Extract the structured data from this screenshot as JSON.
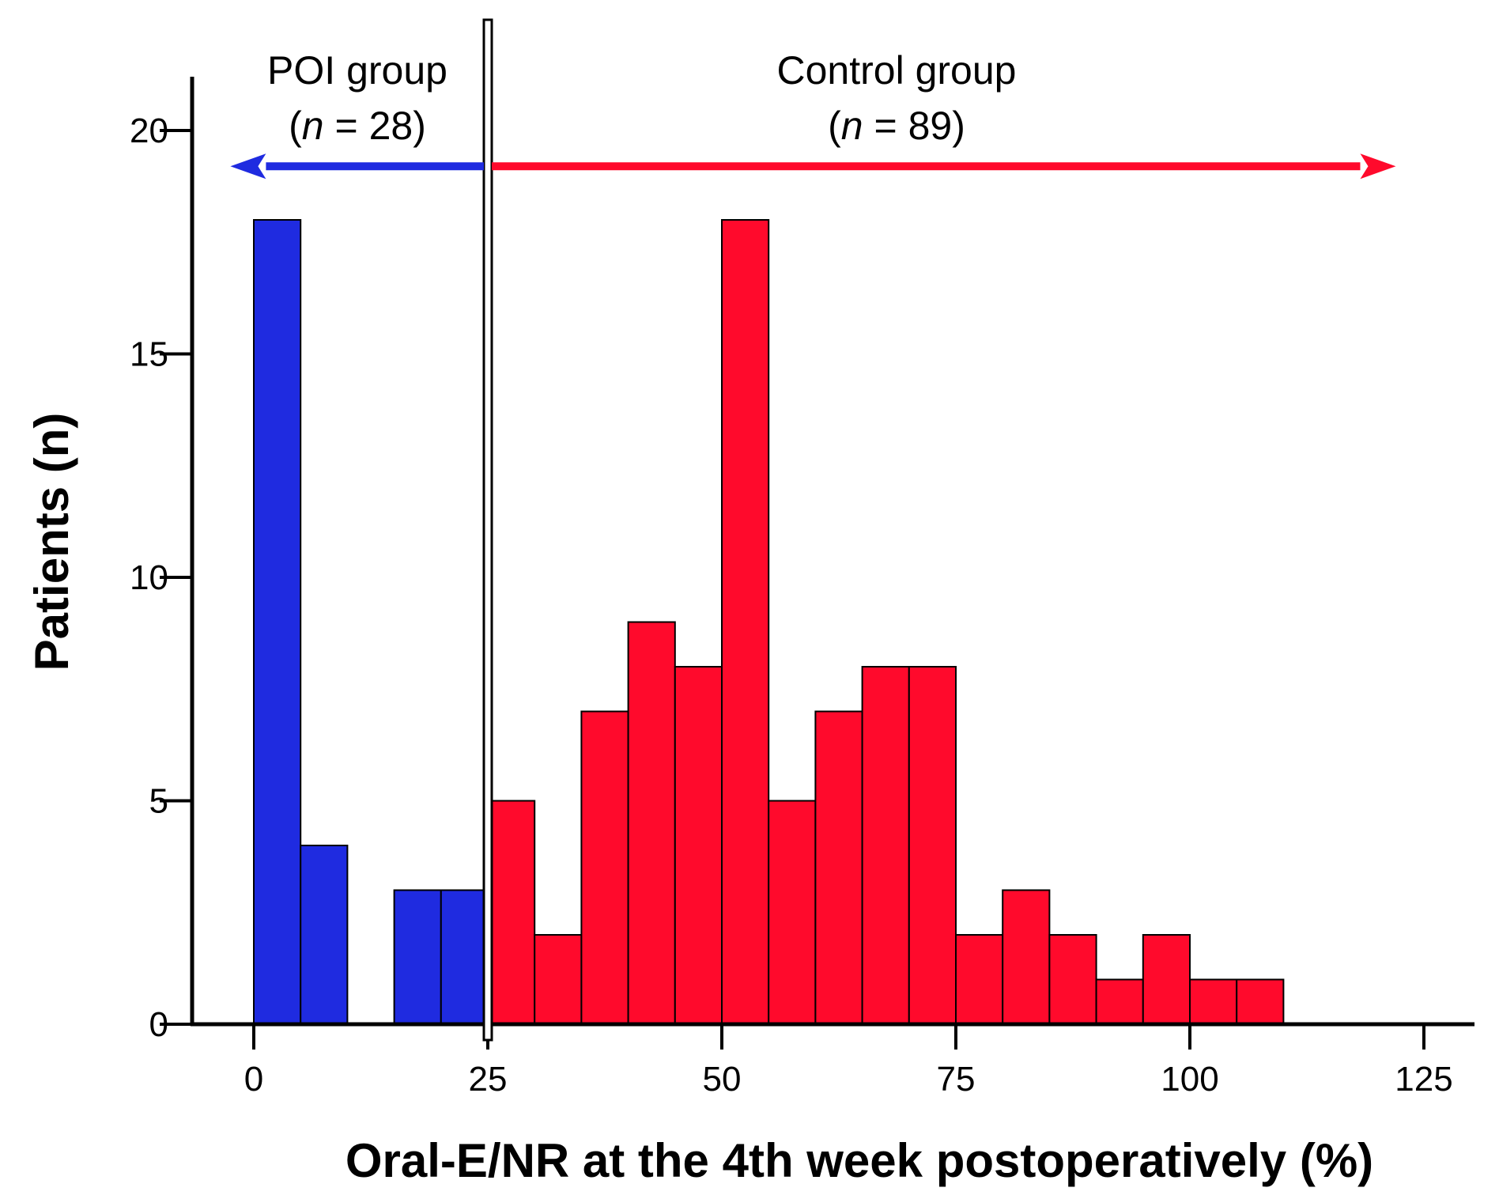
{
  "chart_data": {
    "type": "bar",
    "title": "",
    "xlabel": "Oral-E/NR at the 4th week postoperatively (%)",
    "ylabel": "Patients (n)",
    "xlim": [
      -7,
      130
    ],
    "ylim": [
      0,
      21
    ],
    "x_ticks": [
      "0",
      "25",
      "50",
      "75",
      "100",
      "125"
    ],
    "x_tick_values": [
      0,
      25,
      50,
      75,
      100,
      125
    ],
    "y_ticks": [
      "0",
      "5",
      "10",
      "15",
      "20"
    ],
    "y_tick_values": [
      0,
      5,
      10,
      15,
      20
    ],
    "bin_width": 5,
    "cutoff": 25,
    "grid": false,
    "series": [
      {
        "name": "POI group",
        "color": "#1f2be0",
        "bins": [
          {
            "start": 0,
            "value": 18
          },
          {
            "start": 5,
            "value": 4
          },
          {
            "start": 10,
            "value": 0
          },
          {
            "start": 15,
            "value": 3
          },
          {
            "start": 20,
            "value": 3
          }
        ]
      },
      {
        "name": "Control group",
        "color": "#ff0a2c",
        "bins": [
          {
            "start": 25,
            "value": 5
          },
          {
            "start": 30,
            "value": 2
          },
          {
            "start": 35,
            "value": 7
          },
          {
            "start": 40,
            "value": 9
          },
          {
            "start": 45,
            "value": 8
          },
          {
            "start": 50,
            "value": 18
          },
          {
            "start": 55,
            "value": 5
          },
          {
            "start": 60,
            "value": 7
          },
          {
            "start": 65,
            "value": 8
          },
          {
            "start": 70,
            "value": 8
          },
          {
            "start": 75,
            "value": 2
          },
          {
            "start": 80,
            "value": 3
          },
          {
            "start": 85,
            "value": 2
          },
          {
            "start": 90,
            "value": 1
          },
          {
            "start": 95,
            "value": 2
          },
          {
            "start": 100,
            "value": 1
          },
          {
            "start": 105,
            "value": 1
          }
        ]
      }
    ],
    "annotations": {
      "poi": {
        "name": "POI group",
        "n_prefix": "(",
        "n_symbol": "n",
        "n_suffix": " = 28)",
        "arrow_to": -2.5,
        "arrow_y": 19.2,
        "color": "#1f2be0"
      },
      "control": {
        "name": "Control group",
        "n_prefix": "(",
        "n_symbol": "n",
        "n_suffix": " = 89)",
        "arrow_to": 122,
        "arrow_y": 19.2,
        "color": "#ff0a2c"
      }
    }
  }
}
